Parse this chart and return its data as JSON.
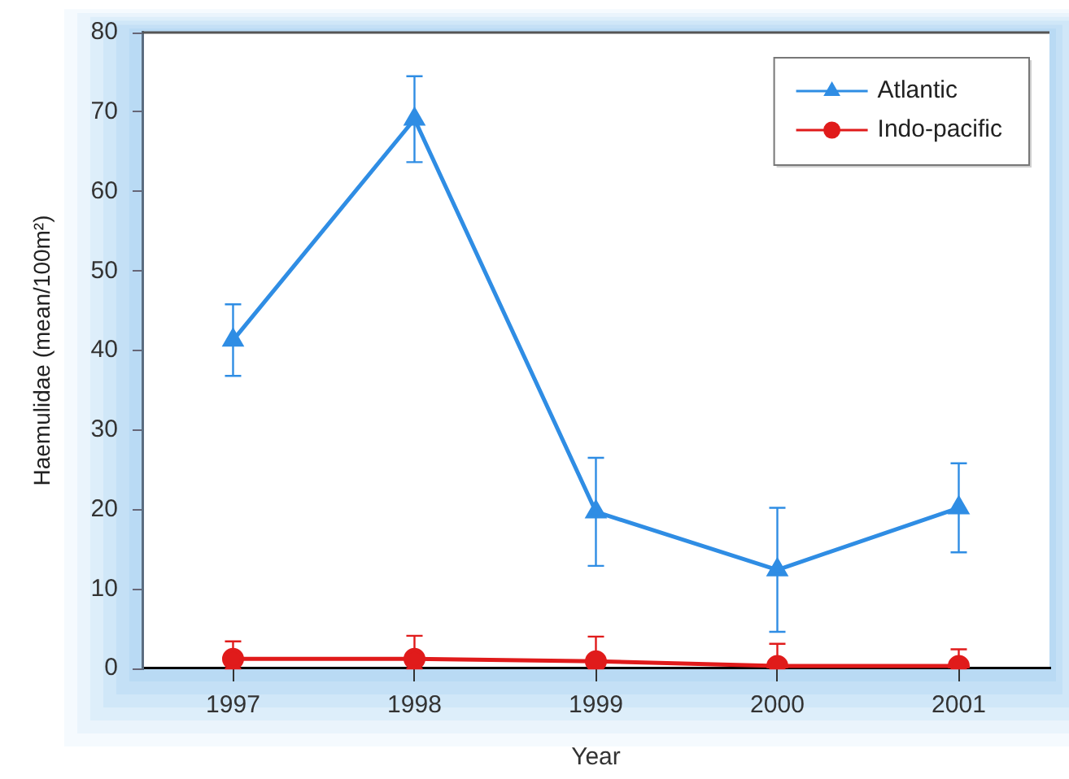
{
  "chart_data": {
    "type": "line",
    "xlabel": "Year",
    "ylabel": "Haemulidae (mean/100m²)",
    "categories": [
      "1997",
      "1998",
      "1999",
      "2000",
      "2001"
    ],
    "ylim": [
      0,
      80
    ],
    "yticks": [
      0,
      10,
      20,
      30,
      40,
      50,
      60,
      70,
      80
    ],
    "legend": "top right",
    "line_style": "solid",
    "series": [
      {
        "name": "Atlantic",
        "color": "#2f8de4",
        "marker": "triangle",
        "values": [
          41.3,
          69.1,
          19.7,
          12.4,
          20.2
        ],
        "errors": [
          4.5,
          5.4,
          6.8,
          7.8,
          5.6
        ]
      },
      {
        "name": "Indo-pacific",
        "color": "#e01b1b",
        "marker": "circle",
        "values": [
          1.2,
          1.2,
          0.9,
          0.3,
          0.3
        ],
        "errors": [
          [
            0,
            3.4
          ],
          [
            0,
            4.1
          ],
          [
            0,
            4.0
          ],
          [
            0,
            3.1
          ],
          [
            0,
            2.4
          ]
        ]
      }
    ]
  }
}
